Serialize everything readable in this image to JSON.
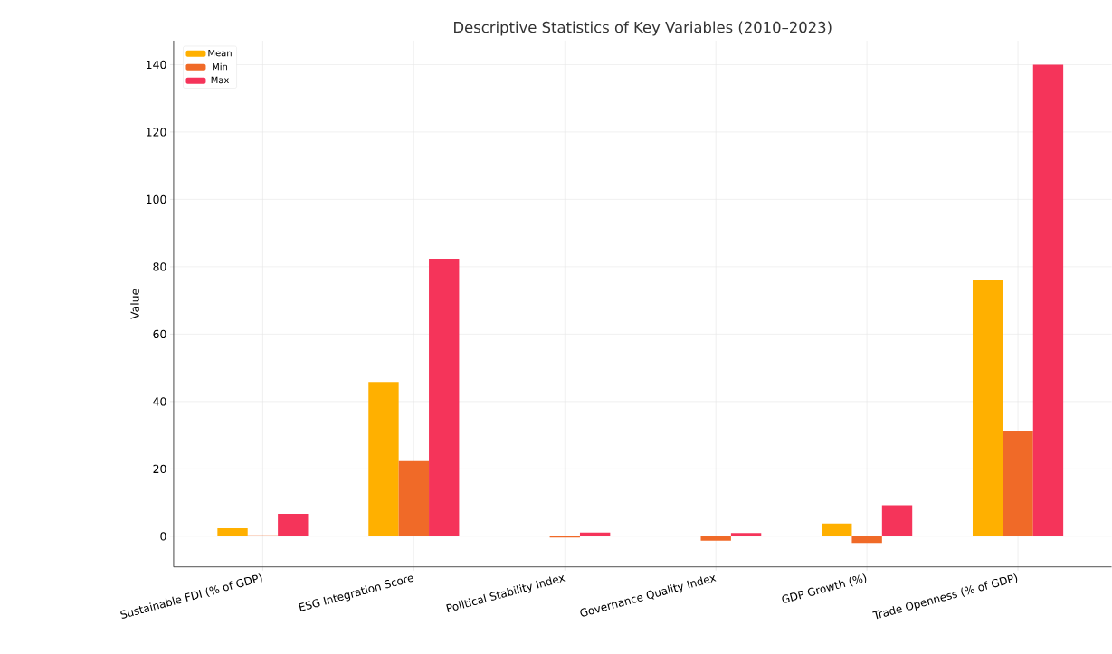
{
  "chart_data": {
    "type": "bar",
    "title": "Descriptive Statistics of Key Variables (2010–2023)",
    "ylabel": "Value",
    "categories": [
      "Sustainable FDI (% of GDP)",
      "ESG Integration Score",
      "Political Stability Index",
      "Governance Quality Index",
      "GDP Growth (%)",
      "Trade Openness (% of GDP)"
    ],
    "series": [
      {
        "name": "Mean",
        "color": "#ffb000",
        "values": [
          2.4,
          45.8,
          0.2,
          null,
          3.8,
          76.2
        ]
      },
      {
        "name": "Min",
        "color": "#f06a28",
        "values": [
          0.3,
          22.3,
          -0.4,
          -1.3,
          -2.0,
          31.2
        ]
      },
      {
        "name": "Max",
        "color": "#f5345a",
        "values": [
          6.7,
          82.4,
          1.1,
          1.0,
          9.2,
          140.0
        ]
      }
    ],
    "ylim": [
      -9.1,
      147.1
    ],
    "yticks": [
      0,
      20,
      40,
      60,
      80,
      100,
      120,
      140
    ],
    "grid": true,
    "legend": "top left"
  }
}
